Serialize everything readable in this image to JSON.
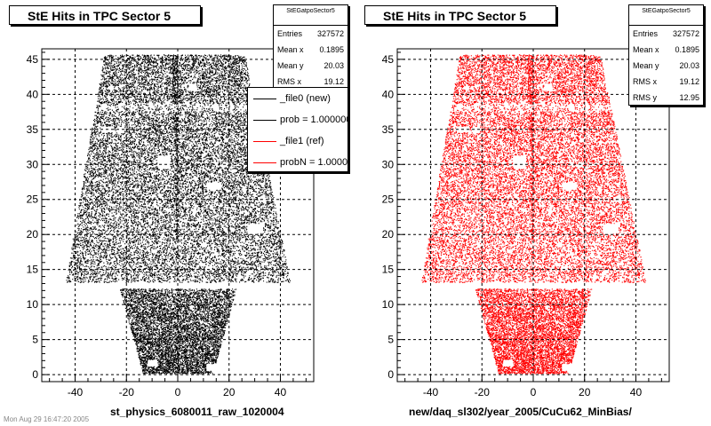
{
  "chart_data": [
    {
      "type": "scatter",
      "title": "StE Hits in TPC Sector 5",
      "xlabel": "st_physics_6080011_raw_1020004",
      "ylabel": "",
      "xlim": [
        -53,
        53
      ],
      "ylim": [
        -1,
        46.5
      ],
      "xticks": [
        "-40",
        "-20",
        "0",
        "20",
        "40"
      ],
      "yticks": [
        "0",
        "5",
        "10",
        "15",
        "20",
        "25",
        "30",
        "35",
        "40",
        "45"
      ],
      "point_color": "#000000",
      "grid": true,
      "stats": {
        "name": "StEGatpoSector5",
        "rows": [
          {
            "label": "Entries",
            "value": "327572"
          },
          {
            "label": "Mean x",
            "value": "0.1895"
          },
          {
            "label": "Mean y",
            "value": "20.03"
          },
          {
            "label": "RMS x",
            "value": "19.12"
          }
        ]
      },
      "legend": [
        {
          "label": "_file0 (new)",
          "color": "#000000"
        },
        {
          "label": "prob = 1.000000",
          "color": "#000000"
        },
        {
          "label": "_file1 (ref)",
          "color": "#ff0000"
        },
        {
          "label": "probN = 1.000000",
          "color": "#ff0000"
        }
      ]
    },
    {
      "type": "scatter",
      "title": "StE Hits in TPC Sector 5",
      "xlabel": "new/daq_sl302/year_2005/CuCu62_MinBias/",
      "ylabel": "",
      "xlim": [
        -53,
        53
      ],
      "ylim": [
        -1,
        46.5
      ],
      "xticks": [
        "-40",
        "-20",
        "0",
        "20",
        "40"
      ],
      "yticks": [
        "0",
        "5",
        "10",
        "15",
        "20",
        "25",
        "30",
        "35",
        "40",
        "45"
      ],
      "point_color": "#ff0000",
      "grid": true,
      "stats": {
        "name": "StEGatpoSector5",
        "rows": [
          {
            "label": "Entries",
            "value": "327572"
          },
          {
            "label": "Mean x",
            "value": "0.1895"
          },
          {
            "label": "Mean y",
            "value": "20.03"
          },
          {
            "label": "RMS x",
            "value": "19.12"
          },
          {
            "label": "RMS y",
            "value": "12.95"
          }
        ]
      }
    }
  ],
  "footer": "Mon Aug 29 16:47:20 2005"
}
